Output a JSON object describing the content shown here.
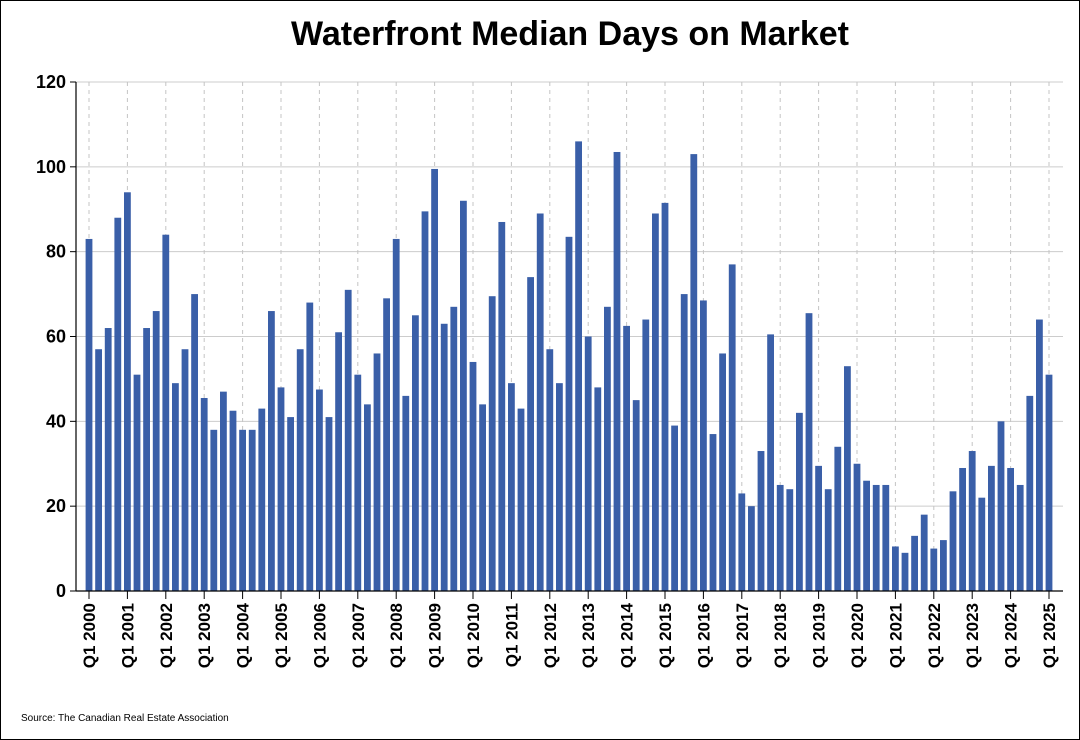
{
  "chart_data": {
    "type": "bar",
    "title": "Waterfront Median Days on Market",
    "xlabel": "",
    "ylabel": "",
    "ylim": [
      0,
      120
    ],
    "yticks": [
      0,
      20,
      40,
      60,
      80,
      100,
      120
    ],
    "grid": {
      "horizontal": true,
      "vertical_dashed": true
    },
    "bar_color": "#3a5fa8",
    "source": "Source: The Canadian Real Estate Association",
    "tick_labels": [
      "Q1 2000",
      "Q1 2001",
      "Q1 2002",
      "Q1 2003",
      "Q1 2004",
      "Q1 2005",
      "Q1 2006",
      "Q1 2007",
      "Q1 2008",
      "Q1 2009",
      "Q1 2010",
      "Q1 2011",
      "Q1 2012",
      "Q1 2013",
      "Q1 2014",
      "Q1 2015",
      "Q1 2016",
      "Q1 2017",
      "Q1 2018",
      "Q1 2019",
      "Q1 2020",
      "Q1 2021",
      "Q1 2022",
      "Q1 2023",
      "Q1 2024",
      "Q1 2025"
    ],
    "categories": [
      "Q1 2000",
      "Q2 2000",
      "Q3 2000",
      "Q4 2000",
      "Q1 2001",
      "Q2 2001",
      "Q3 2001",
      "Q4 2001",
      "Q1 2002",
      "Q2 2002",
      "Q3 2002",
      "Q4 2002",
      "Q1 2003",
      "Q2 2003",
      "Q3 2003",
      "Q4 2003",
      "Q1 2004",
      "Q2 2004",
      "Q3 2004",
      "Q4 2004",
      "Q1 2005",
      "Q2 2005",
      "Q3 2005",
      "Q4 2005",
      "Q1 2006",
      "Q2 2006",
      "Q3 2006",
      "Q4 2006",
      "Q1 2007",
      "Q2 2007",
      "Q3 2007",
      "Q4 2007",
      "Q1 2008",
      "Q2 2008",
      "Q3 2008",
      "Q4 2008",
      "Q1 2009",
      "Q2 2009",
      "Q3 2009",
      "Q4 2009",
      "Q1 2010",
      "Q2 2010",
      "Q3 2010",
      "Q4 2010",
      "Q1 2011",
      "Q2 2011",
      "Q3 2011",
      "Q4 2011",
      "Q1 2012",
      "Q2 2012",
      "Q3 2012",
      "Q4 2012",
      "Q1 2013",
      "Q2 2013",
      "Q3 2013",
      "Q4 2013",
      "Q1 2014",
      "Q2 2014",
      "Q3 2014",
      "Q4 2014",
      "Q1 2015",
      "Q2 2015",
      "Q3 2015",
      "Q4 2015",
      "Q1 2016",
      "Q2 2016",
      "Q3 2016",
      "Q4 2016",
      "Q1 2017",
      "Q2 2017",
      "Q3 2017",
      "Q4 2017",
      "Q1 2018",
      "Q2 2018",
      "Q3 2018",
      "Q4 2018",
      "Q1 2019",
      "Q2 2019",
      "Q3 2019",
      "Q4 2019",
      "Q1 2020",
      "Q2 2020",
      "Q3 2020",
      "Q4 2020",
      "Q1 2021",
      "Q2 2021",
      "Q3 2021",
      "Q4 2021",
      "Q1 2022",
      "Q2 2022",
      "Q3 2022",
      "Q4 2022",
      "Q1 2023",
      "Q2 2023",
      "Q3 2023",
      "Q4 2023",
      "Q1 2024",
      "Q2 2024",
      "Q3 2024",
      "Q4 2024",
      "Q1 2025"
    ],
    "values": [
      83,
      57,
      62,
      88,
      94,
      51,
      62,
      66,
      84,
      49,
      57,
      70,
      45.5,
      38,
      47,
      42.5,
      38,
      38,
      43,
      66,
      48,
      41,
      57,
      68,
      47.5,
      41,
      61,
      71,
      51,
      44,
      56,
      69,
      83,
      46,
      65,
      89.5,
      99.5,
      63,
      67,
      92,
      54,
      44,
      69.5,
      87,
      49,
      43,
      74,
      89,
      57,
      49,
      83.5,
      106,
      60,
      48,
      67,
      103.5,
      62.5,
      45,
      64,
      89,
      91.5,
      39,
      70,
      103,
      68.5,
      37,
      56,
      77,
      23,
      20,
      33,
      60.5,
      25,
      24,
      42,
      65.5,
      29.5,
      24,
      34,
      53,
      30,
      26,
      25,
      25,
      10.5,
      9,
      13,
      18,
      10,
      12,
      23.5,
      29,
      33,
      22,
      29.5,
      40,
      29,
      25,
      46,
      64,
      51
    ]
  }
}
